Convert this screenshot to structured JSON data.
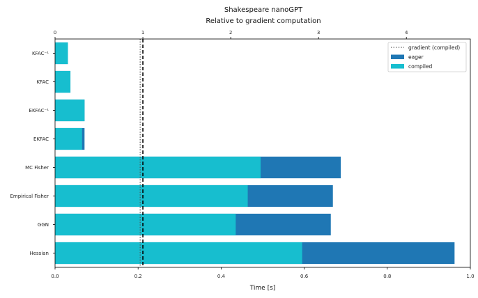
{
  "chart_data": {
    "type": "bar",
    "orientation": "horizontal",
    "title": "Shakespeare nanoGPT",
    "subtitle": "Relative to gradient computation",
    "xlabel": "Time [s]",
    "xlim": [
      0,
      1.0
    ],
    "x_ticks": [
      "0.0",
      "0.2",
      "0.4",
      "0.6",
      "0.8",
      "1.0"
    ],
    "top_axis": {
      "ticks": [
        "0",
        "1",
        "2",
        "3",
        "4"
      ],
      "relative_unit_seconds": 0.2115
    },
    "categories": [
      "KFAC⁻¹",
      "KFAC",
      "EKFAC⁻¹",
      "EKFAC",
      "MC Fisher",
      "Empirical Fisher",
      "GGN",
      "Hessian"
    ],
    "series": [
      {
        "name": "eager",
        "color": "#1f77b4",
        "values": [
          0.031,
          0.037,
          0.071,
          0.071,
          0.688,
          0.669,
          0.664,
          0.962
        ]
      },
      {
        "name": "compiled",
        "color": "#17becf",
        "values": [
          0.031,
          0.037,
          0.071,
          0.065,
          0.495,
          0.464,
          0.435,
          0.595
        ]
      }
    ],
    "reference_lines": [
      {
        "name": "gradient (compiled)",
        "style": "dotted",
        "color": "#555555",
        "value": 0.205
      },
      {
        "name": "",
        "style": "dashed",
        "color": "#000000",
        "value": 0.2115
      }
    ],
    "legend": {
      "placement": "top-right",
      "entries": [
        {
          "label": "gradient (compiled)",
          "kind": "line",
          "color": "#555555"
        },
        {
          "label": "eager",
          "kind": "patch",
          "color": "#1f77b4"
        },
        {
          "label": "compiled",
          "kind": "patch",
          "color": "#17becf"
        }
      ]
    },
    "grid": false
  }
}
